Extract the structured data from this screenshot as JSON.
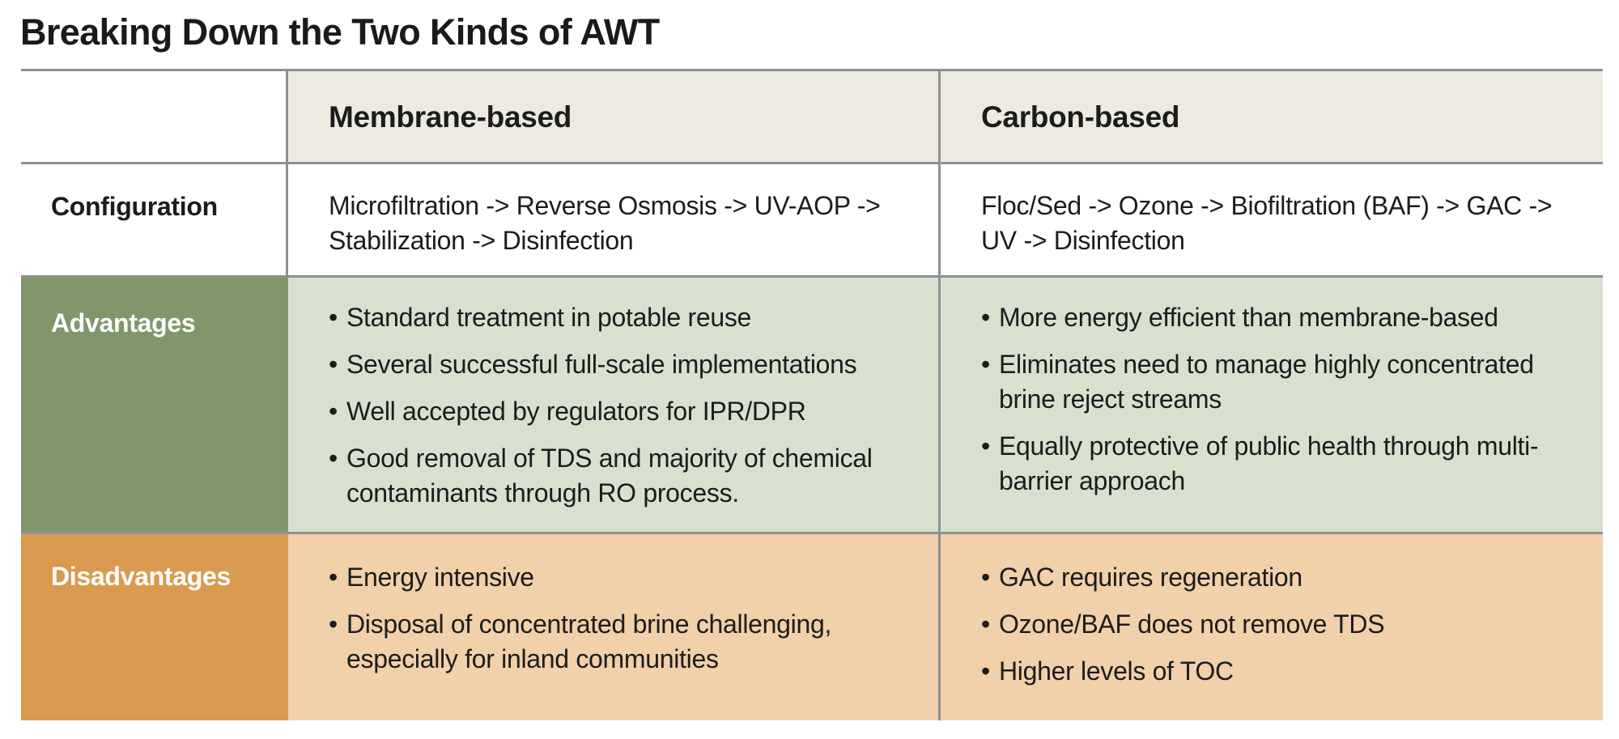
{
  "title": "Breaking Down the Two Kinds of AWT",
  "columns": [
    "Membrane-based",
    "Carbon-based"
  ],
  "rows": {
    "configuration": {
      "label": "Configuration",
      "membrane": "Microfiltration -> Reverse Osmosis -> UV-AOP -> Stabilization -> Disinfection",
      "carbon": "Floc/Sed -> Ozone -> Biofiltration (BAF) -> GAC -> UV -> Disinfection"
    },
    "advantages": {
      "label": "Advantages",
      "membrane": [
        "Standard treatment in potable reuse",
        "Several successful full-scale implementations",
        "Well accepted by regulators for IPR/DPR",
        "Good removal of TDS and majority of chemical contaminants through RO process."
      ],
      "carbon": [
        "More energy efficient than membrane-based",
        "Eliminates need to manage highly concentrated brine reject streams",
        "Equally protective of public health through multi-barrier approach"
      ]
    },
    "disadvantages": {
      "label": "Disadvantages",
      "membrane": [
        "Energy intensive",
        "Disposal of concentrated brine challenging, especially for inland communities"
      ],
      "carbon": [
        "GAC requires regeneration",
        "Ozone/BAF does not remove TDS",
        "Higher levels of TOC"
      ]
    }
  },
  "colors": {
    "header_bg": "#edeae0",
    "advantages_label_bg": "#7f976a",
    "advantages_bg": "#d8e1ce",
    "disadvantages_label_bg": "#da9a4f",
    "disadvantages_bg": "#f1d0aa",
    "rule": "#8d9094"
  }
}
